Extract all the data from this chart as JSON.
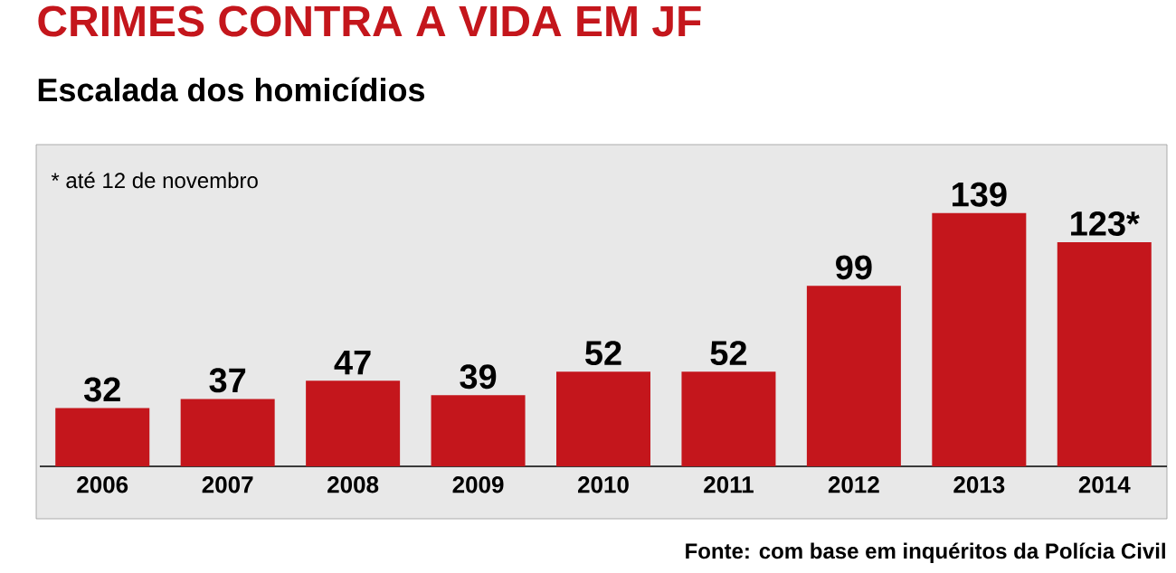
{
  "chart_data": {
    "type": "bar",
    "title": "CRIMES CONTRA A VIDA EM JF",
    "subtitle": "Escalada dos homicídios",
    "categories": [
      "2006",
      "2007",
      "2008",
      "2009",
      "2010",
      "2011",
      "2012",
      "2013",
      "2014"
    ],
    "values": [
      32,
      37,
      47,
      39,
      52,
      52,
      99,
      139,
      123
    ],
    "value_labels": [
      "32",
      "37",
      "47",
      "39",
      "52",
      "52",
      "99",
      "139",
      "123*"
    ],
    "color": "#c4161c",
    "annotations": [
      "* até 12 de novembro",
      "Fonte: com base em inquéritos da Polícia Civil"
    ]
  }
}
